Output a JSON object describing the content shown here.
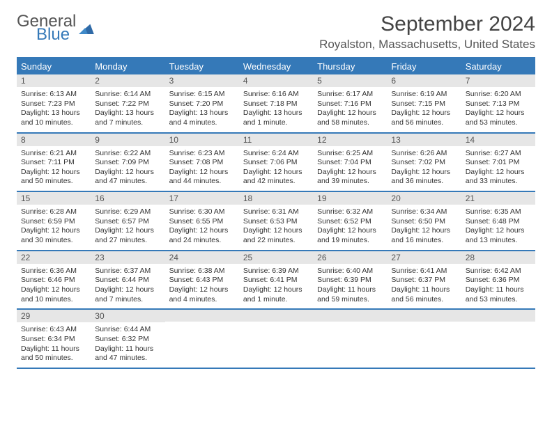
{
  "brand": {
    "word1": "General",
    "word2": "Blue",
    "icon_color": "#2f6aa7"
  },
  "title": "September 2024",
  "location": "Royalston, Massachusetts, United States",
  "colors": {
    "accent": "#3579b8",
    "daynum_bg": "#e6e6e6",
    "text": "#333333"
  },
  "weekdays": [
    "Sunday",
    "Monday",
    "Tuesday",
    "Wednesday",
    "Thursday",
    "Friday",
    "Saturday"
  ],
  "weeks": [
    [
      {
        "n": "1",
        "sr": "Sunrise: 6:13 AM",
        "ss": "Sunset: 7:23 PM",
        "dl": "Daylight: 13 hours and 10 minutes."
      },
      {
        "n": "2",
        "sr": "Sunrise: 6:14 AM",
        "ss": "Sunset: 7:22 PM",
        "dl": "Daylight: 13 hours and 7 minutes."
      },
      {
        "n": "3",
        "sr": "Sunrise: 6:15 AM",
        "ss": "Sunset: 7:20 PM",
        "dl": "Daylight: 13 hours and 4 minutes."
      },
      {
        "n": "4",
        "sr": "Sunrise: 6:16 AM",
        "ss": "Sunset: 7:18 PM",
        "dl": "Daylight: 13 hours and 1 minute."
      },
      {
        "n": "5",
        "sr": "Sunrise: 6:17 AM",
        "ss": "Sunset: 7:16 PM",
        "dl": "Daylight: 12 hours and 58 minutes."
      },
      {
        "n": "6",
        "sr": "Sunrise: 6:19 AM",
        "ss": "Sunset: 7:15 PM",
        "dl": "Daylight: 12 hours and 56 minutes."
      },
      {
        "n": "7",
        "sr": "Sunrise: 6:20 AM",
        "ss": "Sunset: 7:13 PM",
        "dl": "Daylight: 12 hours and 53 minutes."
      }
    ],
    [
      {
        "n": "8",
        "sr": "Sunrise: 6:21 AM",
        "ss": "Sunset: 7:11 PM",
        "dl": "Daylight: 12 hours and 50 minutes."
      },
      {
        "n": "9",
        "sr": "Sunrise: 6:22 AM",
        "ss": "Sunset: 7:09 PM",
        "dl": "Daylight: 12 hours and 47 minutes."
      },
      {
        "n": "10",
        "sr": "Sunrise: 6:23 AM",
        "ss": "Sunset: 7:08 PM",
        "dl": "Daylight: 12 hours and 44 minutes."
      },
      {
        "n": "11",
        "sr": "Sunrise: 6:24 AM",
        "ss": "Sunset: 7:06 PM",
        "dl": "Daylight: 12 hours and 42 minutes."
      },
      {
        "n": "12",
        "sr": "Sunrise: 6:25 AM",
        "ss": "Sunset: 7:04 PM",
        "dl": "Daylight: 12 hours and 39 minutes."
      },
      {
        "n": "13",
        "sr": "Sunrise: 6:26 AM",
        "ss": "Sunset: 7:02 PM",
        "dl": "Daylight: 12 hours and 36 minutes."
      },
      {
        "n": "14",
        "sr": "Sunrise: 6:27 AM",
        "ss": "Sunset: 7:01 PM",
        "dl": "Daylight: 12 hours and 33 minutes."
      }
    ],
    [
      {
        "n": "15",
        "sr": "Sunrise: 6:28 AM",
        "ss": "Sunset: 6:59 PM",
        "dl": "Daylight: 12 hours and 30 minutes."
      },
      {
        "n": "16",
        "sr": "Sunrise: 6:29 AM",
        "ss": "Sunset: 6:57 PM",
        "dl": "Daylight: 12 hours and 27 minutes."
      },
      {
        "n": "17",
        "sr": "Sunrise: 6:30 AM",
        "ss": "Sunset: 6:55 PM",
        "dl": "Daylight: 12 hours and 24 minutes."
      },
      {
        "n": "18",
        "sr": "Sunrise: 6:31 AM",
        "ss": "Sunset: 6:53 PM",
        "dl": "Daylight: 12 hours and 22 minutes."
      },
      {
        "n": "19",
        "sr": "Sunrise: 6:32 AM",
        "ss": "Sunset: 6:52 PM",
        "dl": "Daylight: 12 hours and 19 minutes."
      },
      {
        "n": "20",
        "sr": "Sunrise: 6:34 AM",
        "ss": "Sunset: 6:50 PM",
        "dl": "Daylight: 12 hours and 16 minutes."
      },
      {
        "n": "21",
        "sr": "Sunrise: 6:35 AM",
        "ss": "Sunset: 6:48 PM",
        "dl": "Daylight: 12 hours and 13 minutes."
      }
    ],
    [
      {
        "n": "22",
        "sr": "Sunrise: 6:36 AM",
        "ss": "Sunset: 6:46 PM",
        "dl": "Daylight: 12 hours and 10 minutes."
      },
      {
        "n": "23",
        "sr": "Sunrise: 6:37 AM",
        "ss": "Sunset: 6:44 PM",
        "dl": "Daylight: 12 hours and 7 minutes."
      },
      {
        "n": "24",
        "sr": "Sunrise: 6:38 AM",
        "ss": "Sunset: 6:43 PM",
        "dl": "Daylight: 12 hours and 4 minutes."
      },
      {
        "n": "25",
        "sr": "Sunrise: 6:39 AM",
        "ss": "Sunset: 6:41 PM",
        "dl": "Daylight: 12 hours and 1 minute."
      },
      {
        "n": "26",
        "sr": "Sunrise: 6:40 AM",
        "ss": "Sunset: 6:39 PM",
        "dl": "Daylight: 11 hours and 59 minutes."
      },
      {
        "n": "27",
        "sr": "Sunrise: 6:41 AM",
        "ss": "Sunset: 6:37 PM",
        "dl": "Daylight: 11 hours and 56 minutes."
      },
      {
        "n": "28",
        "sr": "Sunrise: 6:42 AM",
        "ss": "Sunset: 6:36 PM",
        "dl": "Daylight: 11 hours and 53 minutes."
      }
    ],
    [
      {
        "n": "29",
        "sr": "Sunrise: 6:43 AM",
        "ss": "Sunset: 6:34 PM",
        "dl": "Daylight: 11 hours and 50 minutes."
      },
      {
        "n": "30",
        "sr": "Sunrise: 6:44 AM",
        "ss": "Sunset: 6:32 PM",
        "dl": "Daylight: 11 hours and 47 minutes."
      },
      null,
      null,
      null,
      null,
      null
    ]
  ]
}
